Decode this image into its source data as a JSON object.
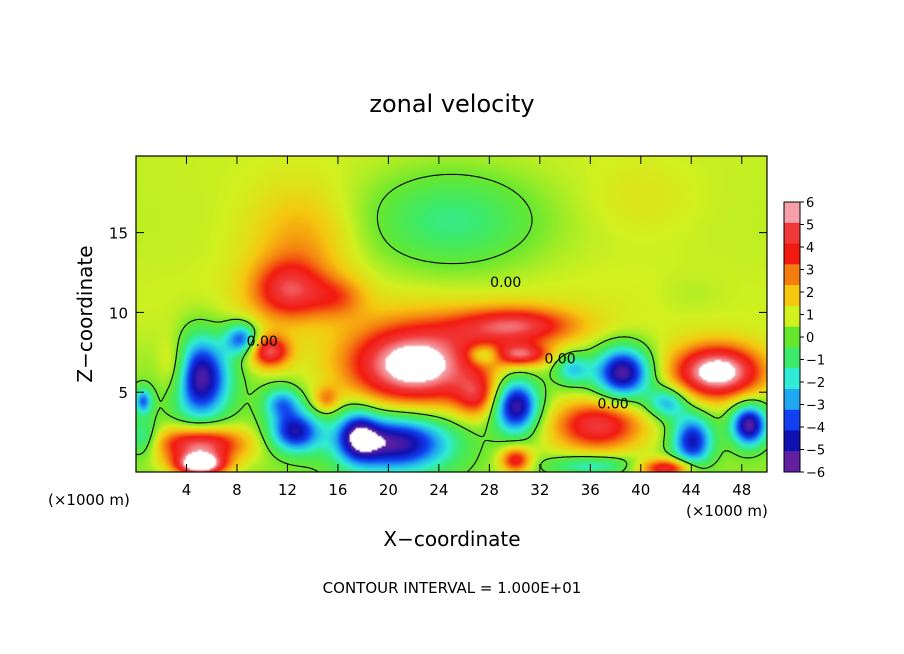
{
  "chart_data": {
    "type": "heatmap",
    "title": "zonal velocity",
    "xlabel": "X−coordinate",
    "ylabel": "Z−coordinate",
    "x_unit_left": "(×1000 m)",
    "x_unit_right": "(×1000 m)",
    "footer": "CONTOUR INTERVAL = 1.000E+01",
    "xlim": [
      0,
      50
    ],
    "ylim": [
      0,
      19.8
    ],
    "x_ticks": [
      4,
      8,
      12,
      16,
      20,
      24,
      28,
      32,
      36,
      40,
      44,
      48
    ],
    "x_tick_labels": [
      "4",
      "8",
      "12",
      "16",
      "20",
      "24",
      "28",
      "32",
      "36",
      "40",
      "44",
      "48"
    ],
    "y_ticks": [
      5,
      10,
      15
    ],
    "y_tick_labels": [
      "5",
      "10",
      "15"
    ],
    "colorbar": {
      "min": -6,
      "max": 6,
      "levels": [
        6,
        5,
        4,
        3,
        2,
        1,
        0,
        -1,
        -2,
        -3,
        -4,
        -5,
        -6
      ],
      "labels": [
        "6",
        "5",
        "4",
        "3",
        "2",
        "1",
        "0",
        "−1",
        "−2",
        "−3",
        "−4",
        "−5",
        "−6"
      ],
      "colors": [
        "#f5a0a8",
        "#f03838",
        "#f21a10",
        "#f57d10",
        "#f5c810",
        "#d2f020",
        "#66e830",
        "#3cea6a",
        "#30ecd6",
        "#20a8f0",
        "#1040f0",
        "#1010b0",
        "#6020a0"
      ]
    },
    "contour_labels": [
      {
        "text": "0.00",
        "x": 29.3,
        "y": 11.9
      },
      {
        "text": "0.00",
        "x": 10.0,
        "y": 8.2
      },
      {
        "text": "0.00",
        "x": 33.6,
        "y": 7.1
      },
      {
        "text": "0.00",
        "x": 37.8,
        "y": 4.3
      }
    ],
    "blobs": [
      {
        "x": 25,
        "y": 19.8,
        "rx": 60,
        "ry": 14,
        "v": 1
      },
      {
        "x": 25,
        "y": 9.9,
        "rx": 60,
        "ry": 3.8,
        "v": 0.5
      },
      {
        "x": 25,
        "y": 1.5,
        "rx": 60,
        "ry": 2.5,
        "v": 0.4
      },
      {
        "x": 25,
        "y": 15.8,
        "rx": 7,
        "ry": 3.2,
        "v": -2.2
      },
      {
        "x": 13,
        "y": 14.6,
        "rx": 4,
        "ry": 3.2,
        "v": 1.6
      },
      {
        "x": 12,
        "y": 11.4,
        "rx": 3,
        "ry": 1.9,
        "v": 3.6
      },
      {
        "x": 16,
        "y": 11.0,
        "rx": 2.2,
        "ry": 1.3,
        "v": 1.8
      },
      {
        "x": 30,
        "y": 9.2,
        "rx": 4.8,
        "ry": 1.2,
        "v": 4.2
      },
      {
        "x": 22,
        "y": 6.7,
        "rx": 5.4,
        "ry": 2.6,
        "v": 6.5
      },
      {
        "x": 10.5,
        "y": 7.6,
        "rx": 1.6,
        "ry": 1.0,
        "v": 4.5
      },
      {
        "x": 5,
        "y": 6.0,
        "rx": 2.3,
        "ry": 2.6,
        "v": -6.5
      },
      {
        "x": 8.3,
        "y": 8.4,
        "rx": 1.3,
        "ry": 1.0,
        "v": -4.5
      },
      {
        "x": 3,
        "y": 6.5,
        "rx": 1.3,
        "ry": 2.0,
        "v": 2.5
      },
      {
        "x": 12.5,
        "y": 2.6,
        "rx": 2.0,
        "ry": 1.3,
        "v": -5.5
      },
      {
        "x": 11.5,
        "y": 4.4,
        "rx": 1.5,
        "ry": 1.0,
        "v": -3.5
      },
      {
        "x": 15,
        "y": 4.6,
        "rx": 1.0,
        "ry": 0.8,
        "v": 2.2
      },
      {
        "x": 17.5,
        "y": 2.4,
        "rx": 1.6,
        "ry": 1.6,
        "v": -4
      },
      {
        "x": 20.5,
        "y": 1.9,
        "rx": 4.5,
        "ry": 1.8,
        "v": -6.5
      },
      {
        "x": 27,
        "y": 4.8,
        "rx": 1.8,
        "ry": 1.4,
        "v": 3
      },
      {
        "x": 30,
        "y": 4.2,
        "rx": 1.8,
        "ry": 1.7,
        "v": -6.5
      },
      {
        "x": 30.5,
        "y": 7.4,
        "rx": 2.2,
        "ry": 0.7,
        "v": 4
      },
      {
        "x": 27.5,
        "y": 7.4,
        "rx": 1.2,
        "ry": 0.6,
        "v": -2.5
      },
      {
        "x": 36.5,
        "y": 3.0,
        "rx": 3.6,
        "ry": 1.6,
        "v": 4.5
      },
      {
        "x": 38.5,
        "y": 6.3,
        "rx": 2.2,
        "ry": 1.6,
        "v": -6.5
      },
      {
        "x": 34.5,
        "y": 6.5,
        "rx": 1.4,
        "ry": 1.0,
        "v": -3
      },
      {
        "x": 46,
        "y": 6.3,
        "rx": 3.6,
        "ry": 1.7,
        "v": 6.5
      },
      {
        "x": 42,
        "y": 4.4,
        "rx": 1.6,
        "ry": 1.0,
        "v": -3.5
      },
      {
        "x": 44,
        "y": 2.0,
        "rx": 1.6,
        "ry": 1.6,
        "v": -5.5
      },
      {
        "x": 48.5,
        "y": 3.0,
        "rx": 1.4,
        "ry": 1.3,
        "v": -6.5
      },
      {
        "x": 5,
        "y": 1.8,
        "rx": 3.5,
        "ry": 1.1,
        "v": 5.2
      },
      {
        "x": 5,
        "y": 0.5,
        "rx": 2.0,
        "ry": 0.7,
        "v": 6.5
      },
      {
        "x": 0.5,
        "y": 2.2,
        "rx": 1.2,
        "ry": 1.2,
        "v": -2.5
      },
      {
        "x": 0.5,
        "y": 4.5,
        "rx": 0.7,
        "ry": 0.8,
        "v": -4
      },
      {
        "x": 42,
        "y": 0.3,
        "rx": 2.2,
        "ry": 0.6,
        "v": 4.5
      },
      {
        "x": 30,
        "y": 0.8,
        "rx": 1.2,
        "ry": 0.8,
        "v": 4
      },
      {
        "x": 36,
        "y": 0.5,
        "rx": 3.5,
        "ry": 0.6,
        "v": -2.5
      },
      {
        "x": 44,
        "y": 11.2,
        "rx": 2.5,
        "ry": 1.2,
        "v": -0.3
      },
      {
        "x": 40,
        "y": 17.2,
        "rx": 4,
        "ry": 2.2,
        "v": 0.4
      }
    ]
  }
}
